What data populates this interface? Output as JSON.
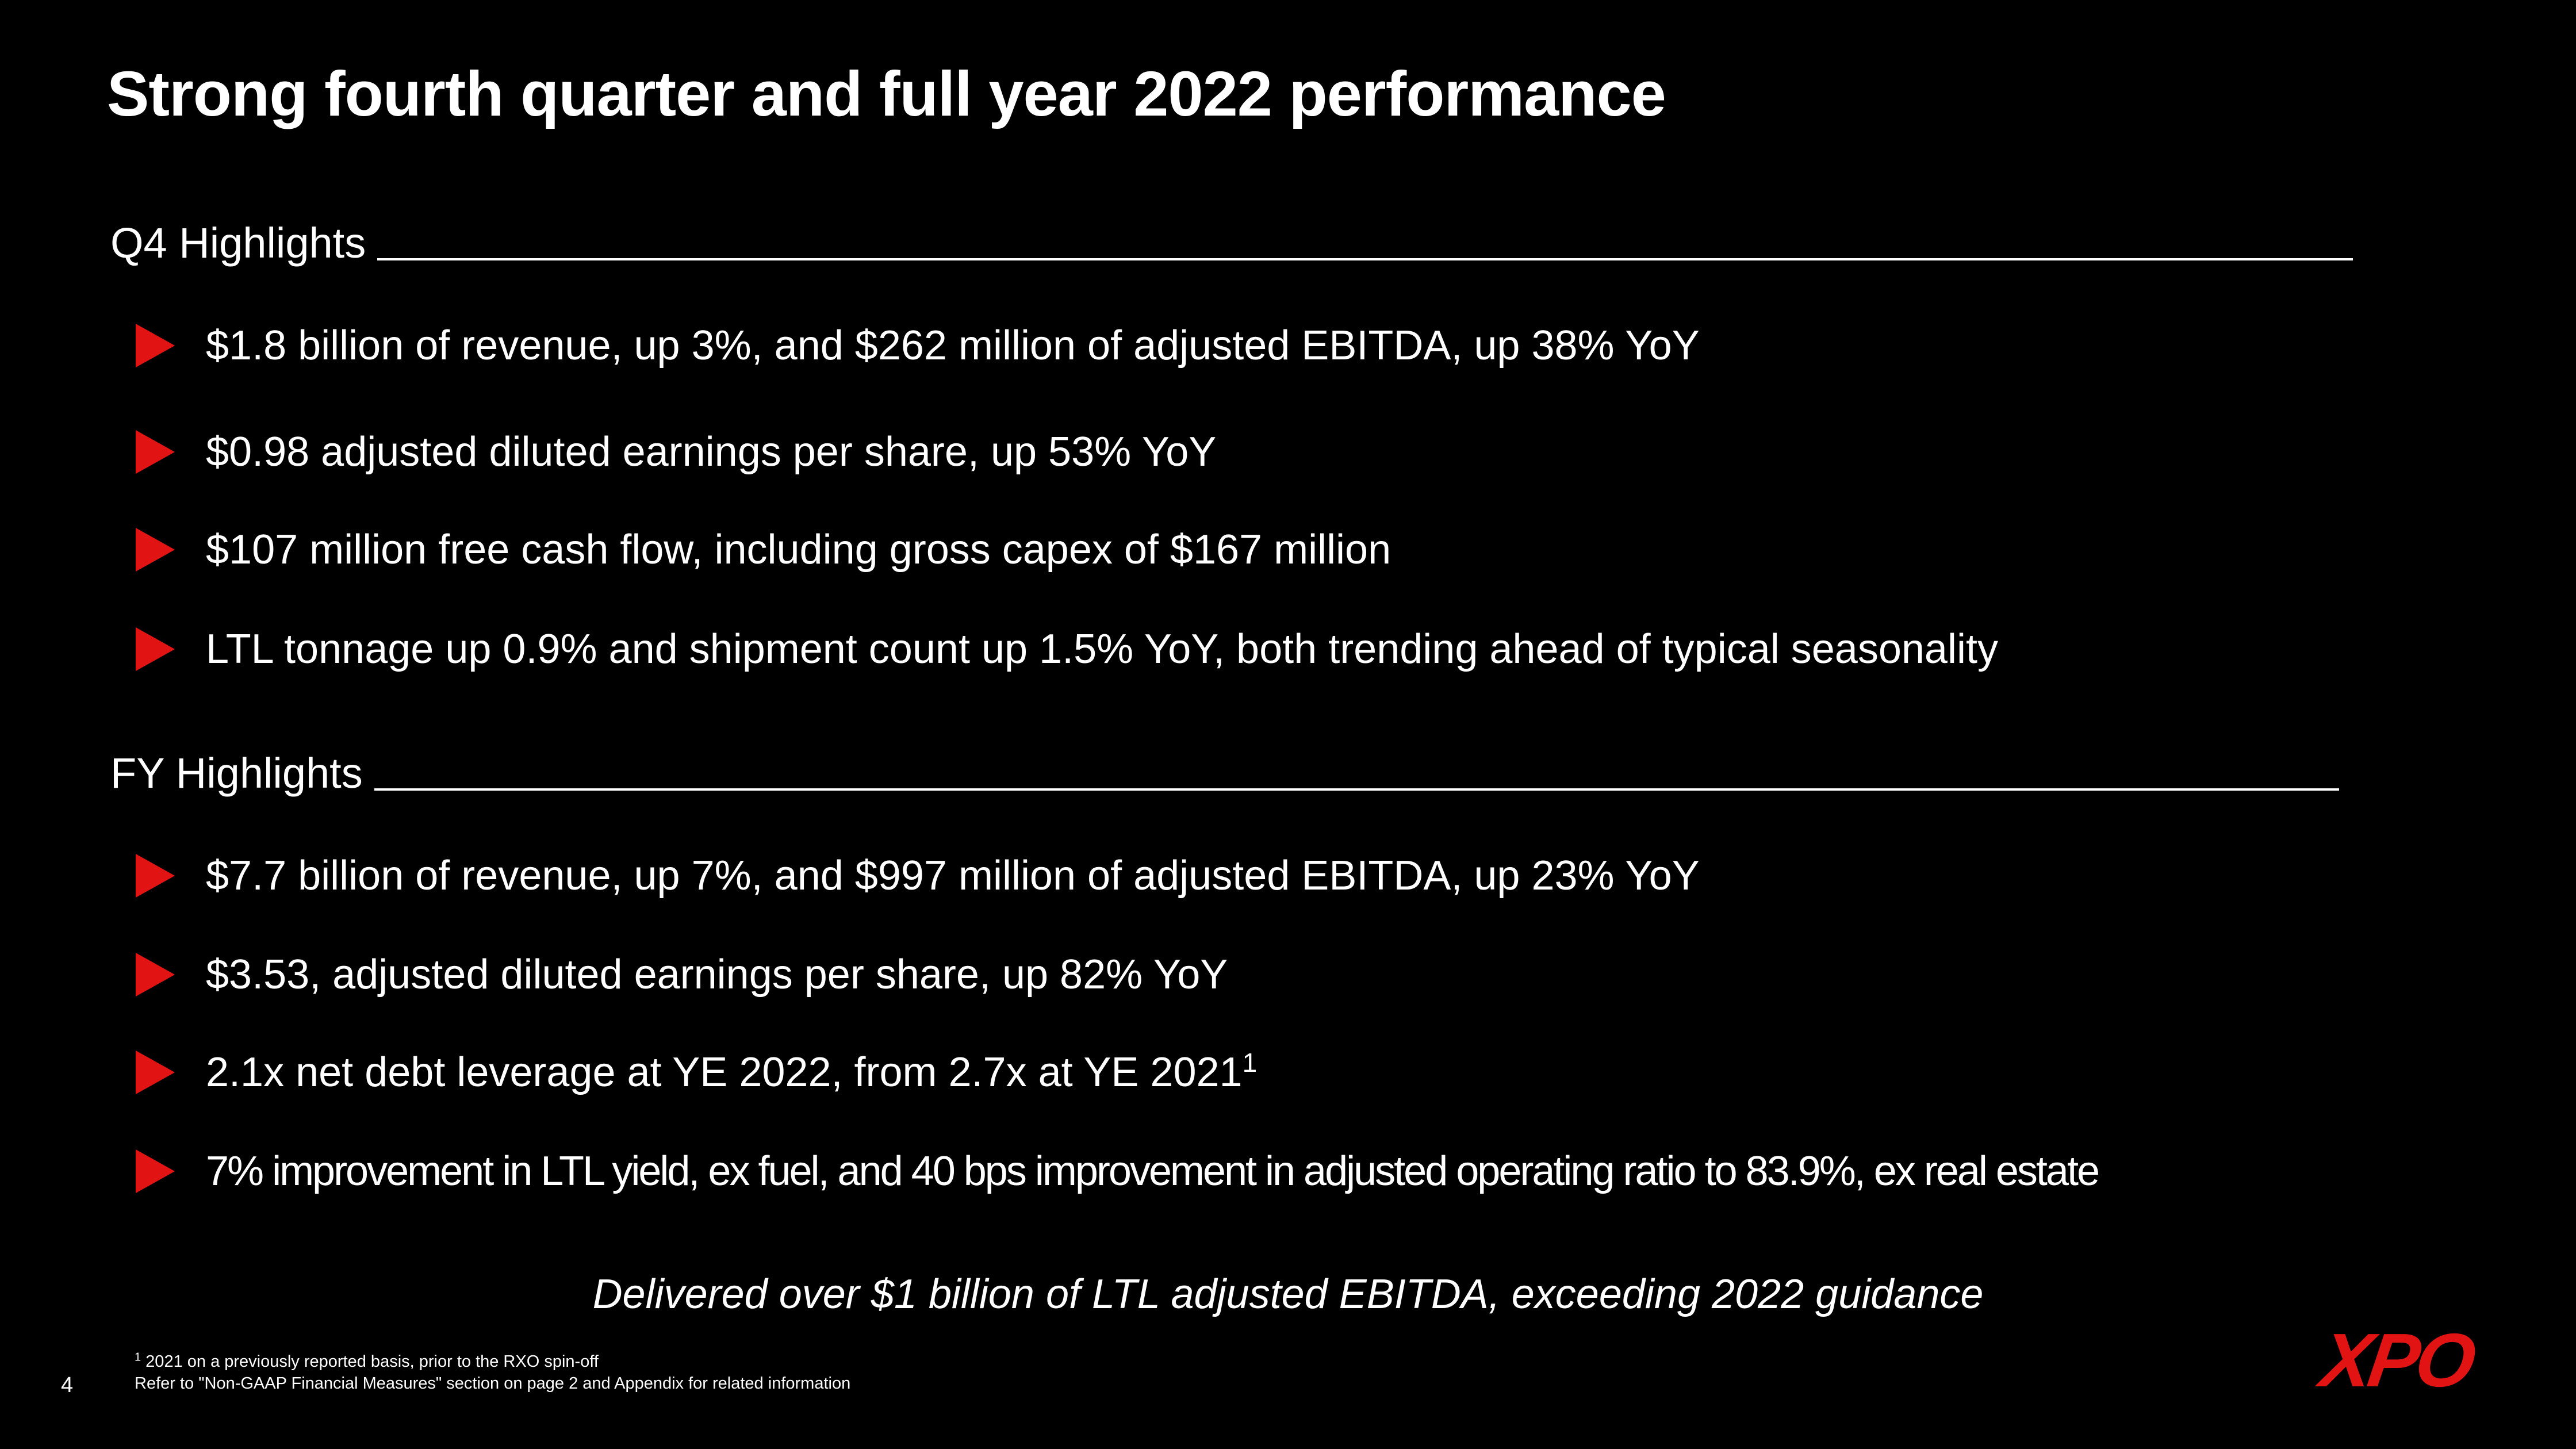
{
  "title": "Strong fourth quarter and full year 2022 performance",
  "q4": {
    "heading": "Q4 Highlights",
    "bullets": [
      "$1.8 billion of revenue, up 3%, and $262 million of adjusted EBITDA, up 38% YoY",
      "$0.98 adjusted diluted earnings per share, up 53% YoY",
      "$107 million free cash flow, including gross capex of $167 million",
      "LTL tonnage up 0.9% and shipment count up 1.5% YoY, both trending ahead of typical seasonality"
    ]
  },
  "fy": {
    "heading": "FY Highlights",
    "bullets": [
      "$7.7 billion of revenue, up 7%, and $997 million of adjusted EBITDA, up 23% YoY",
      "$3.53, adjusted diluted earnings per share, up 82% YoY",
      "2.1x net debt leverage at YE 2022, from 2.7x at YE 2021",
      "7% improvement in LTL yield, ex fuel, and 40 bps improvement in adjusted operating ratio to 83.9%, ex real estate"
    ],
    "bullet3_superscript": "1"
  },
  "tagline": "Delivered over $1 billion of LTL adjusted EBITDA, exceeding 2022 guidance",
  "footnotes": {
    "note1_marker": "1",
    "note1_text": " 2021 on a previously reported basis, prior to the RXO spin-off",
    "note2_text": "Refer to \"Non-GAAP Financial Measures\" section on page 2 and Appendix for related information"
  },
  "page_number": "4",
  "logo_text": "XPO",
  "colors": {
    "background": "#000000",
    "text": "#ffffff",
    "accent": "#e11313"
  },
  "icons": {
    "bullet": "red-triangle-arrow-icon"
  }
}
